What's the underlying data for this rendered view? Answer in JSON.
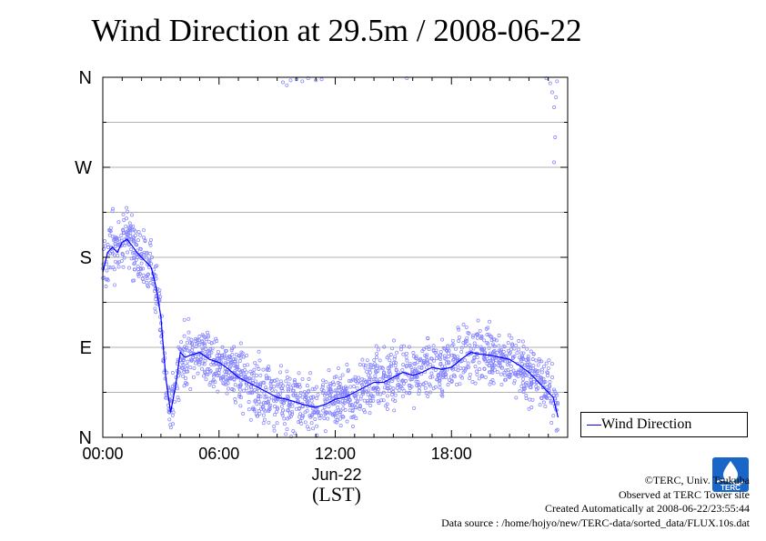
{
  "chart_data": {
    "type": "scatter",
    "title": "Wind Direction at 29.5m / 2008-06-22",
    "xlabel": "(LST)",
    "x_date_label": "Jun-22",
    "ylabel": "",
    "x_range_hours": [
      0,
      24
    ],
    "xticks": [
      {
        "hour": 0,
        "label": "00:00"
      },
      {
        "hour": 6,
        "label": "06:00"
      },
      {
        "hour": 12,
        "label": "12:00"
      },
      {
        "hour": 18,
        "label": "18:00"
      }
    ],
    "y_range_deg": [
      0,
      360
    ],
    "yticks": [
      {
        "deg": 0,
        "label": "N"
      },
      {
        "deg": 90,
        "label": "E"
      },
      {
        "deg": 180,
        "label": "S"
      },
      {
        "deg": 270,
        "label": "W"
      },
      {
        "deg": 360,
        "label": "N"
      }
    ],
    "grid": true,
    "legend": {
      "entries": [
        "Wind Direction"
      ],
      "placement": "outside-right-bottom"
    },
    "series": [
      {
        "name": "Wind Direction",
        "color": "#0000ff",
        "scatter_color": "#8080ff",
        "x": [
          0,
          0.25,
          0.5,
          0.75,
          1.0,
          1.25,
          1.5,
          1.75,
          2.0,
          2.25,
          2.5,
          2.75,
          3.0,
          3.25,
          3.5,
          3.75,
          4.0,
          4.25,
          4.5,
          5.0,
          5.5,
          6.0,
          6.5,
          7.0,
          7.5,
          8.0,
          8.5,
          9.0,
          9.5,
          10.0,
          10.5,
          11.0,
          11.5,
          12.0,
          12.5,
          13.0,
          13.5,
          14.0,
          14.5,
          15.0,
          15.5,
          16.0,
          16.5,
          17.0,
          17.5,
          18.0,
          18.5,
          19.0,
          19.5,
          20.0,
          20.5,
          21.0,
          21.5,
          22.0,
          22.5,
          23.0,
          23.25,
          23.5
        ],
        "values": [
          165,
          185,
          190,
          185,
          195,
          198,
          192,
          185,
          180,
          175,
          170,
          150,
          120,
          60,
          25,
          50,
          85,
          80,
          82,
          85,
          78,
          75,
          68,
          60,
          55,
          50,
          45,
          40,
          38,
          35,
          32,
          30,
          33,
          38,
          40,
          45,
          50,
          55,
          55,
          60,
          65,
          62,
          65,
          70,
          68,
          70,
          78,
          85,
          83,
          82,
          80,
          78,
          72,
          65,
          55,
          45,
          40,
          20
        ]
      }
    ]
  },
  "legend_label": "Wind Direction",
  "credits": {
    "copyright": "©TERC, Univ. Tsukuba",
    "site": "Observed at TERC Tower site",
    "created": "Created Automatically at 2008-06-22/23:55:44",
    "source": "Data source : /home/hojyo/new/TERC-data/sorted_data/FLUX.10s.dat"
  },
  "logo_text": "TERC"
}
